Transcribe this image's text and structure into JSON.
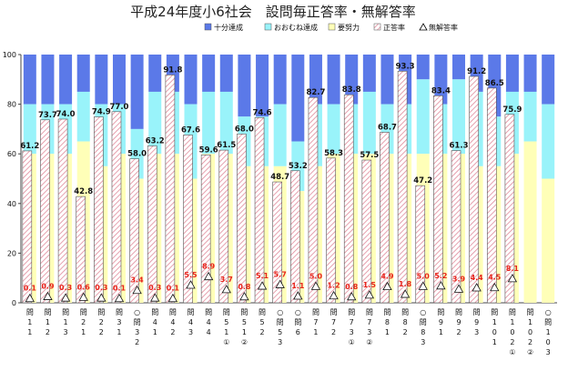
{
  "chart_data": {
    "type": "bar",
    "title": "平成24年度小6社会　設問毎正答率・無解答率",
    "legend": {
      "position": "top-right",
      "items": [
        {
          "key": "full",
          "label": "十分達成",
          "color": "#5b79e8"
        },
        {
          "key": "mostly",
          "label": "おおむね達成",
          "color": "#99f3fa"
        },
        {
          "key": "effort",
          "label": "要努力",
          "color": "#ffffb8"
        },
        {
          "key": "correct",
          "label": "正答率",
          "pattern": "diagonal-hatch"
        },
        {
          "key": "noanswer",
          "label": "無解答率",
          "marker": "triangle"
        }
      ]
    },
    "ylim": [
      0,
      100
    ],
    "yticks": [
      0,
      20,
      40,
      60,
      80,
      100
    ],
    "grid": false,
    "categories": [
      "問1(1)",
      "問1(2)",
      "問1(3)",
      "問2(1)",
      "問2(2)",
      "問3(1)",
      "問3(2)",
      "問4(1)",
      "問4(2)",
      "問4(3)",
      "問4(4)",
      "問5(1)①",
      "問5(1)②",
      "問5(2)",
      "問5(3)",
      "問6",
      "問7(1)",
      "問7(2)",
      "問7(3)①",
      "問7(3)②",
      "問8(1)",
      "問8(2)",
      "問8(3)",
      "問9(1)",
      "問9(2)",
      "問9(3)",
      "問10(1)",
      "問10(2)①",
      "問10(2)②",
      "問10(3)"
    ],
    "circle_marked": [
      false,
      false,
      false,
      false,
      false,
      false,
      true,
      false,
      false,
      false,
      false,
      false,
      false,
      false,
      true,
      true,
      false,
      false,
      false,
      false,
      false,
      false,
      true,
      false,
      false,
      false,
      false,
      false,
      false,
      true
    ],
    "circle_numbers": [
      "",
      "",
      "",
      "",
      "",
      "",
      "",
      "",
      "",
      "",
      "",
      "①",
      "②",
      "",
      "",
      "",
      "",
      "",
      "①",
      "②",
      "",
      "",
      "",
      "",
      "",
      "",
      "",
      "①",
      "②",
      ""
    ],
    "category_prefix": "問",
    "circle_prefix": "○",
    "full_from": [
      80,
      80,
      80,
      85,
      80,
      80,
      70,
      85,
      85,
      80,
      85,
      85,
      75,
      75,
      80,
      65,
      80,
      80,
      80,
      85,
      80,
      80,
      90,
      80,
      90,
      85,
      75,
      85,
      85,
      80
    ],
    "effort_to": [
      60,
      60,
      60,
      65,
      55,
      60,
      50,
      60,
      60,
      50,
      60,
      60,
      55,
      55,
      55,
      45,
      55,
      60,
      60,
      60,
      60,
      60,
      60,
      60,
      60,
      55,
      55,
      60,
      65,
      50
    ],
    "correct_rate": [
      61.2,
      73.7,
      74.0,
      42.8,
      74.9,
      77.0,
      58.0,
      63.2,
      91.8,
      67.6,
      59.6,
      61.5,
      68.0,
      74.6,
      48.7,
      53.2,
      82.7,
      58.3,
      83.8,
      57.5,
      68.7,
      93.3,
      47.2,
      83.4,
      61.3,
      91.2,
      86.5,
      75.9,
      null,
      null
    ],
    "no_answer_rate": [
      0.1,
      0.9,
      0.3,
      0.6,
      0.3,
      0.1,
      3.4,
      0.3,
      0.1,
      5.5,
      8.9,
      3.7,
      0.8,
      5.1,
      5.7,
      1.1,
      5.0,
      1.2,
      0.8,
      1.5,
      4.9,
      1.8,
      5.0,
      5.2,
      3.9,
      4.4,
      4.5,
      8.1,
      null,
      null
    ]
  }
}
